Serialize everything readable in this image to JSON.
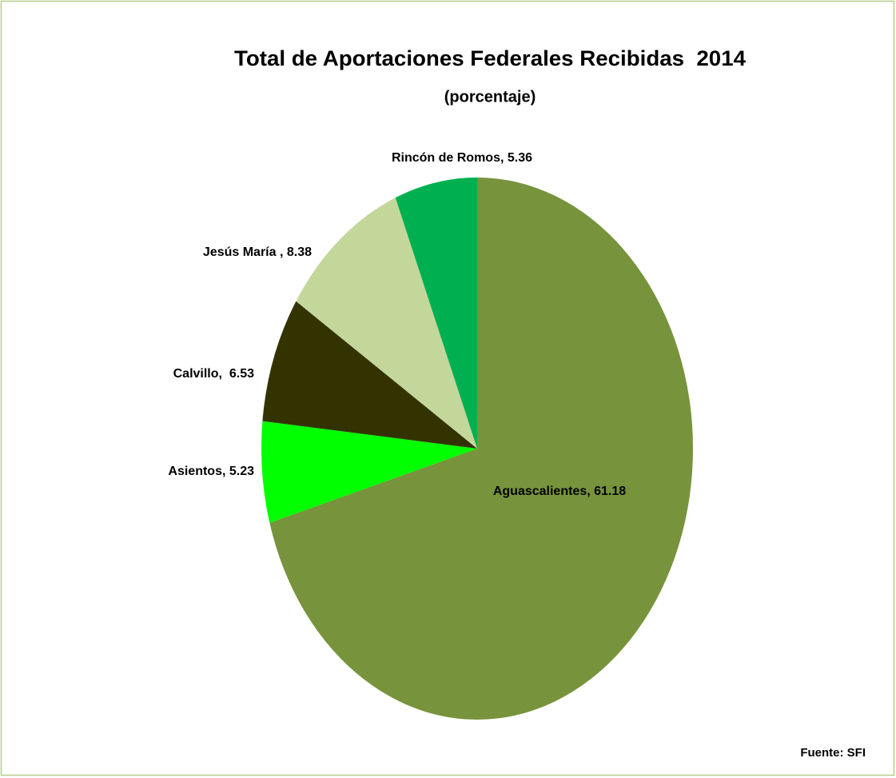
{
  "chart_data": {
    "type": "pie",
    "title": "Total de Aportaciones Federales Recibidas  2014",
    "subtitle": "(porcentaje)",
    "source": "Fuente: SFI",
    "categories": [
      "Aguascalientes",
      "Asientos",
      "Calvillo",
      "Jesús María ",
      "Rincón de Romos"
    ],
    "values": [
      61.18,
      5.23,
      6.53,
      8.38,
      5.36
    ],
    "value_labels": [
      "Aguascalientes, 61.18",
      "Asientos, 5.23",
      "Calvillo,  6.53",
      "Jesús María , 8.38",
      "Rincón de Romos, 5.36"
    ],
    "colors": [
      "#77933c",
      "#00ff00",
      "#333300",
      "#c4d79b",
      "#00b050"
    ]
  }
}
